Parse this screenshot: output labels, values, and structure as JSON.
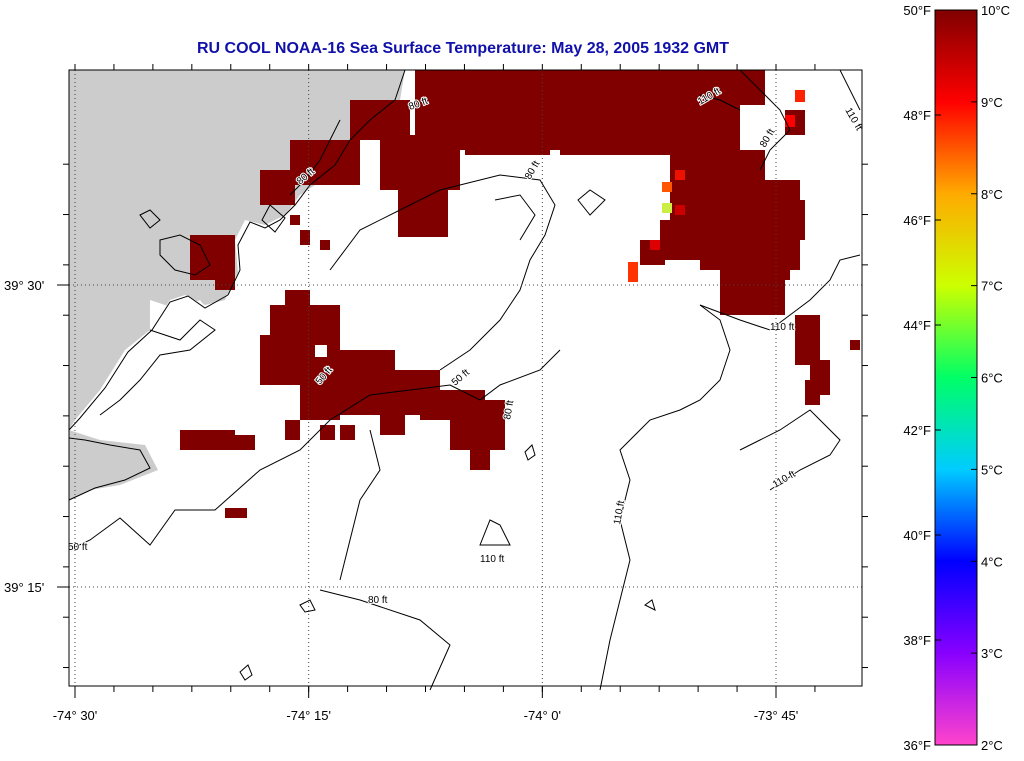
{
  "title": "RU COOL  NOAA-16  Sea Surface Temperature:  May 28, 2005 1932 GMT",
  "colors": {
    "title": "#1010aa",
    "land": "#cccccc",
    "warm_water": "#800000",
    "frame": "#000000",
    "grid": "#555555"
  },
  "map": {
    "lon_ticks": [
      -74.5,
      -74.25,
      -74.0,
      -73.75
    ],
    "lon_labels": [
      "-74° 30'",
      "-74° 15'",
      "-74° 0'",
      "-73° 45'"
    ],
    "lat_ticks": [
      39.5,
      39.25
    ],
    "lat_labels": [
      "39° 30'",
      "39° 15'"
    ],
    "grid": "dotted",
    "isobaths": [
      {
        "label": "50 ft",
        "depth_ft": 50
      },
      {
        "label": "80 ft",
        "depth_ft": 80
      },
      {
        "label": "110 ft",
        "depth_ft": 110
      }
    ],
    "contour_labels": [
      "50 ft",
      "50 ft",
      "50 ft",
      "80 ft",
      "80 ft",
      "80 ft",
      "80 ft",
      "80 ft",
      "80 ft",
      "110 ft",
      "110 ft",
      "110 ft",
      "110 ft",
      "110 ft",
      "110 ft"
    ]
  },
  "colorbar": {
    "fahrenheit_labels": [
      "50°F",
      "48°F",
      "46°F",
      "44°F",
      "42°F",
      "40°F",
      "38°F",
      "36°F"
    ],
    "celsius_labels": [
      "10°C",
      "9°C",
      "8°C",
      "7°C",
      "6°C",
      "5°C",
      "4°C",
      "3°C",
      "2°C"
    ],
    "celsius_range": [
      2,
      10
    ],
    "fahrenheit_range": [
      36,
      50
    ],
    "colormap": [
      "#ff44cc",
      "#8800ff",
      "#0000ff",
      "#00ccff",
      "#00ff66",
      "#ccff00",
      "#ffaa00",
      "#ff0000",
      "#800000"
    ]
  }
}
